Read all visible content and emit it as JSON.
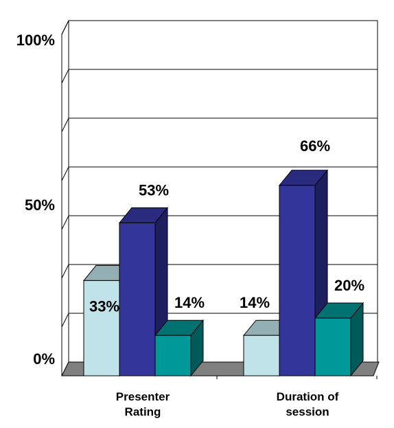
{
  "chart_data": {
    "type": "bar",
    "style": "3d-clustered-column",
    "categories": [
      "Presenter\nRating",
      "Duration of\nsession"
    ],
    "series": [
      {
        "values": [
          33,
          14
        ],
        "value_labels": [
          "33%",
          "14%"
        ],
        "color": "#BFE3E8",
        "side_color": "#8AABAE",
        "top_color": "#93AFB3"
      },
      {
        "values": [
          53,
          66
        ],
        "value_labels": [
          "53%",
          "66%"
        ],
        "color": "#34359A",
        "side_color": "#1E1F5E",
        "top_color": "#2A2B7E"
      },
      {
        "values": [
          14,
          20
        ],
        "value_labels": [
          "14%",
          "20%"
        ],
        "color": "#00999A",
        "side_color": "#005A5A",
        "top_color": "#007272"
      }
    ],
    "y_ticks": [
      {
        "value": 0,
        "label": "0%"
      },
      {
        "value": 50,
        "label": "50%"
      },
      {
        "value": 100,
        "label": "100%"
      }
    ],
    "ylim": [
      0,
      150
    ],
    "grid": true,
    "legend": "none",
    "colors": {
      "floor": "#808080",
      "gridline": "#000000"
    }
  }
}
